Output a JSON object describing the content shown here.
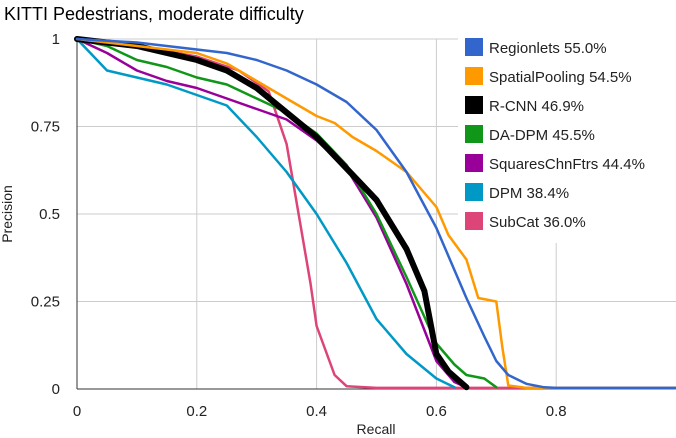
{
  "chart_data": {
    "type": "line",
    "title": "KITTI Pedestrians, moderate difficulty",
    "xlabel": "Recall",
    "ylabel": "Precision",
    "xlim": [
      0,
      1
    ],
    "ylim": [
      0,
      1
    ],
    "x_ticks": [
      0,
      0.2,
      0.4,
      0.6,
      0.8
    ],
    "x_tick_labels": [
      "0",
      "0.2",
      "0.4",
      "0.6",
      "0.8"
    ],
    "y_ticks": [
      0,
      0.25,
      0.5,
      0.75,
      1
    ],
    "y_tick_labels": [
      "0",
      "0.25",
      "0.5",
      "0.75",
      "1"
    ],
    "grid": true,
    "legend_position": "top-right",
    "series": [
      {
        "name": "Regionlets 55.0%",
        "color": "#3366cc",
        "points": [
          [
            0,
            1
          ],
          [
            0.1,
            0.99
          ],
          [
            0.2,
            0.97
          ],
          [
            0.25,
            0.96
          ],
          [
            0.3,
            0.94
          ],
          [
            0.35,
            0.91
          ],
          [
            0.4,
            0.87
          ],
          [
            0.45,
            0.82
          ],
          [
            0.5,
            0.74
          ],
          [
            0.55,
            0.62
          ],
          [
            0.6,
            0.46
          ],
          [
            0.65,
            0.26
          ],
          [
            0.68,
            0.15
          ],
          [
            0.7,
            0.08
          ],
          [
            0.72,
            0.04
          ],
          [
            0.75,
            0.015
          ],
          [
            0.78,
            0.005
          ],
          [
            0.8,
            0.003
          ],
          [
            1.0,
            0.003
          ]
        ]
      },
      {
        "name": "SpatialPooling 54.5%",
        "color": "#ff9900",
        "points": [
          [
            0,
            1
          ],
          [
            0.05,
            0.99
          ],
          [
            0.1,
            0.98
          ],
          [
            0.2,
            0.96
          ],
          [
            0.25,
            0.93
          ],
          [
            0.3,
            0.88
          ],
          [
            0.35,
            0.83
          ],
          [
            0.4,
            0.78
          ],
          [
            0.43,
            0.76
          ],
          [
            0.46,
            0.72
          ],
          [
            0.5,
            0.68
          ],
          [
            0.55,
            0.62
          ],
          [
            0.6,
            0.52
          ],
          [
            0.62,
            0.44
          ],
          [
            0.65,
            0.37
          ],
          [
            0.67,
            0.26
          ],
          [
            0.7,
            0.25
          ],
          [
            0.71,
            0.12
          ],
          [
            0.72,
            0.01
          ],
          [
            0.75,
            0.003
          ],
          [
            1.0,
            0.003
          ]
        ]
      },
      {
        "name": "R-CNN 46.9%",
        "color": "#000000",
        "points": [
          [
            0,
            1
          ],
          [
            0.05,
            0.99
          ],
          [
            0.1,
            0.98
          ],
          [
            0.15,
            0.96
          ],
          [
            0.2,
            0.94
          ],
          [
            0.25,
            0.91
          ],
          [
            0.3,
            0.86
          ],
          [
            0.35,
            0.79
          ],
          [
            0.4,
            0.72
          ],
          [
            0.45,
            0.63
          ],
          [
            0.5,
            0.54
          ],
          [
            0.55,
            0.4
          ],
          [
            0.58,
            0.28
          ],
          [
            0.6,
            0.1
          ],
          [
            0.62,
            0.05
          ],
          [
            0.65,
            0.005
          ]
        ]
      },
      {
        "name": "DA-DPM 45.5%",
        "color": "#109618",
        "points": [
          [
            0,
            1
          ],
          [
            0.05,
            0.98
          ],
          [
            0.1,
            0.94
          ],
          [
            0.15,
            0.92
          ],
          [
            0.2,
            0.89
          ],
          [
            0.25,
            0.87
          ],
          [
            0.3,
            0.83
          ],
          [
            0.35,
            0.79
          ],
          [
            0.4,
            0.73
          ],
          [
            0.45,
            0.64
          ],
          [
            0.5,
            0.5
          ],
          [
            0.55,
            0.32
          ],
          [
            0.6,
            0.13
          ],
          [
            0.63,
            0.07
          ],
          [
            0.65,
            0.04
          ],
          [
            0.68,
            0.03
          ],
          [
            0.7,
            0.005
          ]
        ]
      },
      {
        "name": "SquaresChnFtrs 44.4%",
        "color": "#990099",
        "points": [
          [
            0,
            1
          ],
          [
            0.05,
            0.96
          ],
          [
            0.1,
            0.91
          ],
          [
            0.15,
            0.88
          ],
          [
            0.2,
            0.86
          ],
          [
            0.25,
            0.83
          ],
          [
            0.3,
            0.8
          ],
          [
            0.35,
            0.77
          ],
          [
            0.4,
            0.71
          ],
          [
            0.45,
            0.63
          ],
          [
            0.5,
            0.49
          ],
          [
            0.55,
            0.3
          ],
          [
            0.6,
            0.08
          ],
          [
            0.63,
            0.02
          ],
          [
            0.65,
            0.005
          ]
        ]
      },
      {
        "name": "DPM 38.4%",
        "color": "#0099c6",
        "points": [
          [
            0,
            1
          ],
          [
            0.05,
            0.91
          ],
          [
            0.1,
            0.89
          ],
          [
            0.15,
            0.87
          ],
          [
            0.2,
            0.84
          ],
          [
            0.25,
            0.81
          ],
          [
            0.3,
            0.72
          ],
          [
            0.35,
            0.62
          ],
          [
            0.4,
            0.5
          ],
          [
            0.45,
            0.36
          ],
          [
            0.5,
            0.2
          ],
          [
            0.55,
            0.1
          ],
          [
            0.6,
            0.03
          ],
          [
            0.63,
            0.005
          ]
        ]
      },
      {
        "name": "SubCat 36.0%",
        "color": "#dd4477",
        "points": [
          [
            0,
            1
          ],
          [
            0.1,
            0.98
          ],
          [
            0.2,
            0.95
          ],
          [
            0.27,
            0.91
          ],
          [
            0.32,
            0.85
          ],
          [
            0.35,
            0.7
          ],
          [
            0.37,
            0.5
          ],
          [
            0.39,
            0.3
          ],
          [
            0.4,
            0.18
          ],
          [
            0.43,
            0.04
          ],
          [
            0.45,
            0.008
          ],
          [
            0.5,
            0.003
          ],
          [
            1.0,
            0.003
          ]
        ]
      }
    ]
  }
}
